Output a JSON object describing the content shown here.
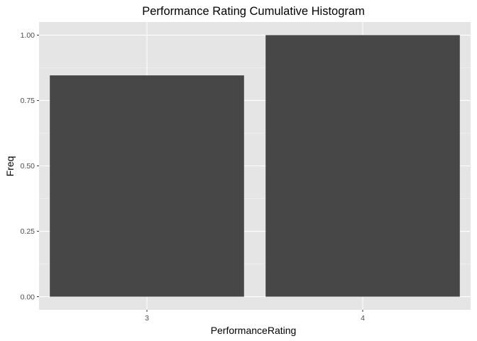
{
  "chart_data": {
    "type": "bar",
    "title": "Performance Rating   Cumulative Histogram",
    "xlabel": "PerformanceRating",
    "ylabel": "Freq",
    "categories": [
      "3",
      "4"
    ],
    "values": [
      0.846,
      1.0
    ],
    "ylim": [
      -0.05,
      1.05
    ],
    "yticks": [
      {
        "value": 0,
        "label": "0.00"
      },
      {
        "value": 0.25,
        "label": "0.25"
      },
      {
        "value": 0.5,
        "label": "0.50"
      },
      {
        "value": 0.75,
        "label": "0.75"
      },
      {
        "value": 1.0,
        "label": "1.00"
      }
    ],
    "grid": true,
    "legend": "none",
    "colors": {
      "panel_background": "#e5e5e5",
      "grid_major": "#ffffff",
      "grid_minor": "#f2f2f2",
      "bar_fill": "#474747",
      "tick_color": "#333333"
    }
  }
}
